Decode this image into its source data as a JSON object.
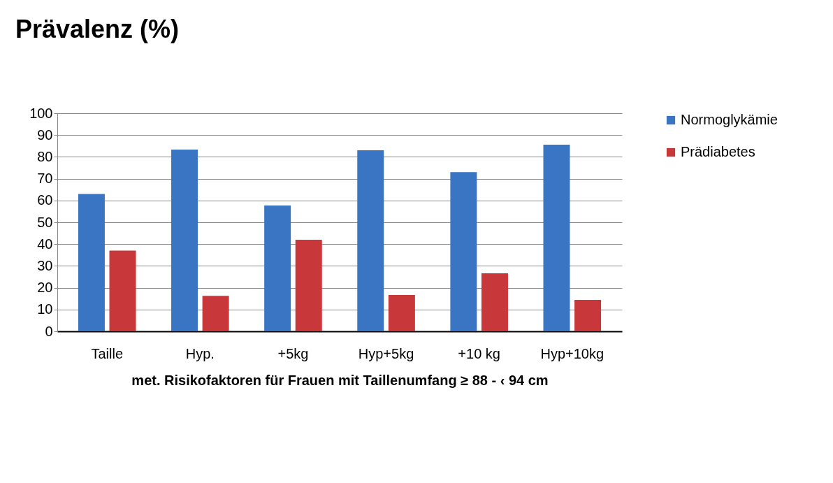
{
  "chart_data": {
    "type": "bar",
    "title": "Prävalenz (%)",
    "xlabel": "met. Risikofaktoren für Frauen mit Taillenumfang ≥ 88 - ‹ 94 cm",
    "categories": [
      "Taille",
      "Hyp.",
      "+5kg",
      "Hyp+5kg",
      "+10 kg",
      "Hyp+10kg"
    ],
    "series": [
      {
        "name": "Normoglykämie",
        "color": "#3a75c4",
        "values": [
          63,
          83.3,
          57.7,
          83,
          73,
          85.6
        ]
      },
      {
        "name": "Prädiabetes",
        "color": "#c8373a",
        "values": [
          37,
          16.3,
          42,
          16.7,
          26.6,
          14.4
        ]
      }
    ],
    "ylim": [
      0,
      100
    ],
    "yticks": [
      0,
      10,
      20,
      30,
      40,
      50,
      60,
      70,
      80,
      90,
      100
    ],
    "grid": "y",
    "legend": "right"
  }
}
